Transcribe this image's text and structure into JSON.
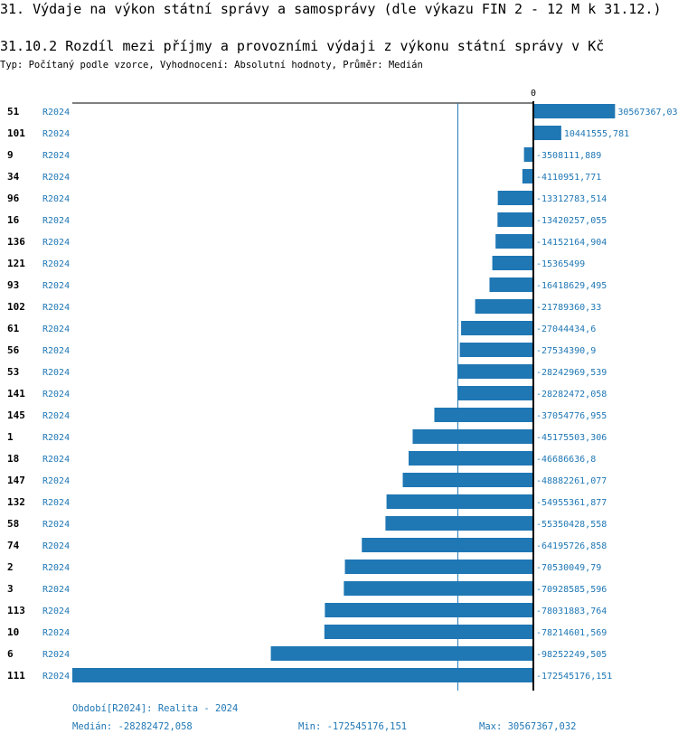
{
  "header": {
    "title": "31. Výdaje na výkon státní správy a samosprávy (dle výkazu FIN 2 - 12 M k 31.12.)",
    "subtitle": "31.10.2 Rozdíl mezi příjmy a provozními výdaji z výkonu státní správy v Kč",
    "info": "Typ: Počítaný podle vzorce, Vyhodnocení: Absolutní hodnoty, Průměr: Medián"
  },
  "chart_data": {
    "type": "bar",
    "orientation": "horizontal",
    "zero_label": "0",
    "series_label": "R2024",
    "categories": [
      "51",
      "101",
      "9",
      "34",
      "96",
      "16",
      "136",
      "121",
      "93",
      "102",
      "61",
      "56",
      "53",
      "141",
      "145",
      "1",
      "18",
      "147",
      "132",
      "58",
      "74",
      "2",
      "3",
      "113",
      "10",
      "6",
      "111"
    ],
    "values": [
      30567367.03,
      10441555.781,
      -3508111.889,
      -4110951.771,
      -13312783.514,
      -13420257.055,
      -14152164.904,
      -15365499,
      -16418629.495,
      -21789360.33,
      -27044434.6,
      -27534390.9,
      -28242969.539,
      -28282472.058,
      -37054776.955,
      -45175503.306,
      -46686636.8,
      -48882261.077,
      -54955361.877,
      -55350428.558,
      -64195726.858,
      -70530049.79,
      -70928585.596,
      -78031883.764,
      -78214601.569,
      -98252249.505,
      -172545176.151
    ],
    "value_labels": [
      "30567367,03",
      "10441555,781",
      "-3508111,889",
      "-4110951,771",
      "-13312783,514",
      "-13420257,055",
      "-14152164,904",
      "-15365499",
      "-16418629,495",
      "-21789360,33",
      "-27044434,6",
      "-27534390,9",
      "-28242969,539",
      "-28282472,058",
      "-37054776,955",
      "-45175503,306",
      "-46686636,8",
      "-48882261,077",
      "-54955361,877",
      "-55350428,558",
      "-64195726,858",
      "-70530049,79",
      "-70928585,596",
      "-78031883,764",
      "-78214601,569",
      "-98252249,505",
      "-172545176,151"
    ],
    "median": -28282472.058,
    "min": -172545176.151,
    "max": 30567367.032,
    "bar_color": "#1f77b4"
  },
  "footer": {
    "period": "Období[R2024]: Realita - 2024",
    "median": "Medián: -28282472,058",
    "min": "Min: -172545176,151",
    "max": "Max: 30567367,032"
  }
}
